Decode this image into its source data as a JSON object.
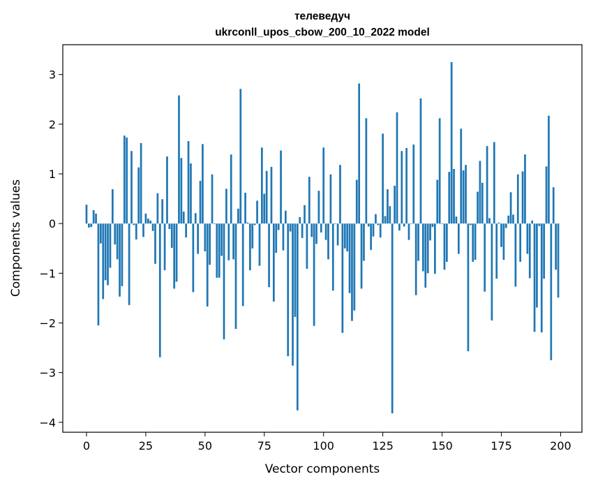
{
  "chart_data": {
    "type": "bar",
    "title_line1": "телеведуч",
    "title_line2": "ukrconll_upos_cbow_200_10_2022 model",
    "xlabel": "Vector components",
    "ylabel": "Components values",
    "xlim": [
      -10,
      209
    ],
    "ylim": [
      -4.2,
      3.6
    ],
    "xticks": [
      0,
      25,
      50,
      75,
      100,
      125,
      150,
      175,
      200
    ],
    "yticks": [
      -4,
      -3,
      -2,
      -1,
      0,
      1,
      2,
      3
    ],
    "grid": false,
    "bar_color": "#1f77b4",
    "x": [
      0,
      1,
      2,
      3,
      4,
      5,
      6,
      7,
      8,
      9,
      10,
      11,
      12,
      13,
      14,
      15,
      16,
      17,
      18,
      19,
      20,
      21,
      22,
      23,
      24,
      25,
      26,
      27,
      28,
      29,
      30,
      31,
      32,
      33,
      34,
      35,
      36,
      37,
      38,
      39,
      40,
      41,
      42,
      43,
      44,
      45,
      46,
      47,
      48,
      49,
      50,
      51,
      52,
      53,
      54,
      55,
      56,
      57,
      58,
      59,
      60,
      61,
      62,
      63,
      64,
      65,
      66,
      67,
      68,
      69,
      70,
      71,
      72,
      73,
      74,
      75,
      76,
      77,
      78,
      79,
      80,
      81,
      82,
      83,
      84,
      85,
      86,
      87,
      88,
      89,
      90,
      91,
      92,
      93,
      94,
      95,
      96,
      97,
      98,
      99,
      100,
      101,
      102,
      103,
      104,
      105,
      106,
      107,
      108,
      109,
      110,
      111,
      112,
      113,
      114,
      115,
      116,
      117,
      118,
      119,
      120,
      121,
      122,
      123,
      124,
      125,
      126,
      127,
      128,
      129,
      130,
      131,
      132,
      133,
      134,
      135,
      136,
      137,
      138,
      139,
      140,
      141,
      142,
      143,
      144,
      145,
      146,
      147,
      148,
      149,
      150,
      151,
      152,
      153,
      154,
      155,
      156,
      157,
      158,
      159,
      160,
      161,
      162,
      163,
      164,
      165,
      166,
      167,
      168,
      169,
      170,
      171,
      172,
      173,
      174,
      175,
      176,
      177,
      178,
      179,
      180,
      181,
      182,
      183,
      184,
      185,
      186,
      187,
      188,
      189,
      190,
      191,
      192,
      193,
      194,
      195,
      196,
      197,
      198,
      199
    ],
    "values": [
      0.38,
      -0.08,
      -0.07,
      0.27,
      0.2,
      -2.05,
      -0.4,
      -1.52,
      -1.14,
      -1.24,
      -0.89,
      0.69,
      -0.42,
      -0.72,
      -1.47,
      -1.26,
      1.77,
      1.73,
      -1.64,
      1.46,
      -0.03,
      -0.32,
      1.13,
      1.62,
      -0.27,
      0.2,
      0.1,
      0.06,
      -0.15,
      -0.81,
      0.61,
      -2.69,
      0.49,
      -0.94,
      1.35,
      -0.11,
      -0.49,
      -1.31,
      -1.17,
      2.58,
      1.32,
      0.24,
      -0.28,
      1.66,
      1.21,
      -1.38,
      0.21,
      -0.61,
      0.86,
      1.6,
      -0.56,
      -1.67,
      -0.83,
      0.99,
      -0.01,
      -1.09,
      -1.09,
      -0.65,
      -2.33,
      0.7,
      -0.74,
      1.39,
      -0.72,
      -2.12,
      0.3,
      2.71,
      -1.66,
      0.62,
      0.02,
      -0.94,
      -0.5,
      -0.03,
      0.46,
      -0.85,
      1.53,
      0.6,
      1.06,
      -1.28,
      1.14,
      -1.57,
      -0.59,
      -0.13,
      1.47,
      -0.54,
      0.26,
      -2.67,
      -0.16,
      -2.86,
      -1.88,
      -3.76,
      0.13,
      -0.29,
      0.37,
      -0.91,
      0.94,
      -0.27,
      -2.06,
      -0.41,
      0.66,
      -0.18,
      1.53,
      -0.33,
      -0.72,
      0.99,
      -1.35,
      -0.01,
      -0.44,
      1.18,
      -2.2,
      -0.5,
      -0.56,
      -1.4,
      -1.96,
      -1.75,
      0.88,
      2.82,
      -1.31,
      -0.75,
      2.12,
      -0.06,
      -0.53,
      -0.26,
      0.19,
      -0.03,
      -0.28,
      1.81,
      0.15,
      0.69,
      0.35,
      -3.82,
      0.76,
      2.24,
      -0.14,
      1.46,
      -0.06,
      1.52,
      -0.33,
      -0.01,
      1.59,
      -1.44,
      -0.75,
      2.52,
      -0.96,
      -1.29,
      -1.0,
      -0.34,
      -0.07,
      -1.01,
      0.88,
      2.12,
      -0.01,
      -0.93,
      -0.77,
      1.04,
      3.25,
      1.1,
      0.14,
      -0.61,
      1.91,
      1.07,
      1.18,
      -2.57,
      -0.03,
      -0.77,
      -0.73,
      0.64,
      1.26,
      0.82,
      -1.37,
      1.56,
      0.11,
      -1.95,
      1.64,
      -1.11,
      0.02,
      -0.47,
      -0.73,
      -0.09,
      0.16,
      0.63,
      0.18,
      -1.27,
      0.99,
      -0.77,
      1.05,
      1.39,
      -0.61,
      -1.1,
      0.06,
      -2.18,
      -1.69,
      -0.05,
      -2.19,
      -1.11,
      1.15,
      2.17,
      -2.75,
      0.73,
      -0.93,
      -1.49
    ]
  }
}
